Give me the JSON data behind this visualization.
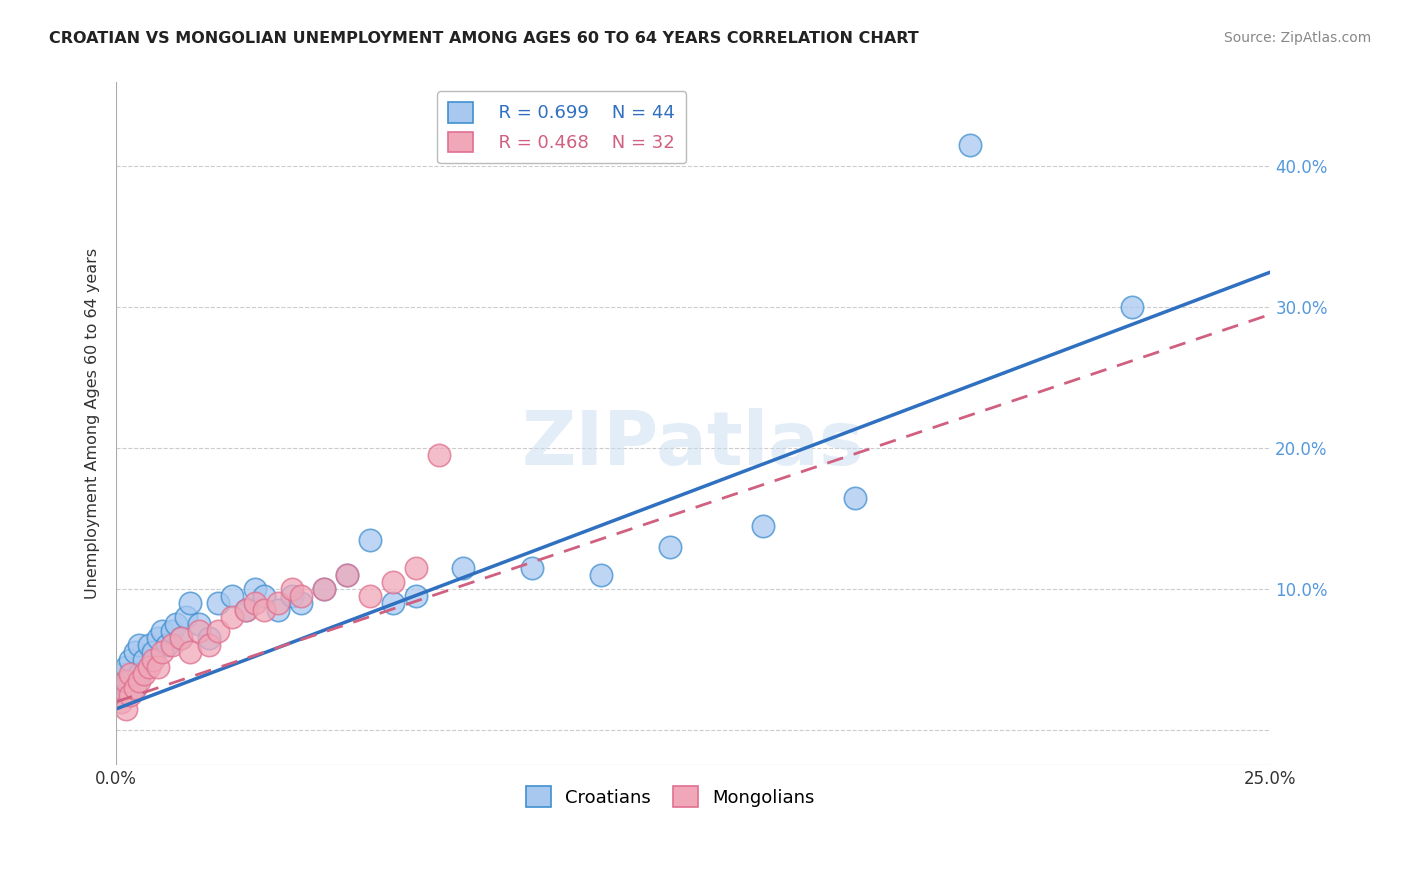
{
  "title": "CROATIAN VS MONGOLIAN UNEMPLOYMENT AMONG AGES 60 TO 64 YEARS CORRELATION CHART",
  "source": "Source: ZipAtlas.com",
  "ylabel": "Unemployment Among Ages 60 to 64 years",
  "xlim": [
    0.0,
    0.25
  ],
  "ylim": [
    -0.025,
    0.46
  ],
  "xtick_positions": [
    0.0,
    0.05,
    0.1,
    0.15,
    0.2,
    0.25
  ],
  "xtick_labels": [
    "0.0%",
    "",
    "",
    "",
    "",
    "25.0%"
  ],
  "ytick_positions": [
    0.0,
    0.1,
    0.2,
    0.3,
    0.4
  ],
  "ytick_labels_right": [
    "",
    "10.0%",
    "20.0%",
    "30.0%",
    "40.0%"
  ],
  "legend_r_croatian": "R = 0.699",
  "legend_n_croatian": "N = 44",
  "legend_r_mongolian": "R = 0.468",
  "legend_n_mongolian": "N = 32",
  "croatian_fill": "#A8C8F0",
  "mongolian_fill": "#F0A8B8",
  "croatian_edge": "#4090D0",
  "mongolian_edge": "#E07090",
  "croatian_line_color": "#3070C0",
  "mongolian_line_color": "#D06080",
  "watermark": "ZIPatlas",
  "background_color": "#FFFFFF",
  "grid_color": "#CCCCCC",
  "croatian_x": [
    0.001,
    0.001,
    0.002,
    0.002,
    0.003,
    0.003,
    0.004,
    0.004,
    0.005,
    0.005,
    0.006,
    0.007,
    0.008,
    0.009,
    0.01,
    0.011,
    0.012,
    0.013,
    0.014,
    0.015,
    0.016,
    0.018,
    0.02,
    0.022,
    0.025,
    0.028,
    0.03,
    0.032,
    0.035,
    0.038,
    0.04,
    0.045,
    0.05,
    0.055,
    0.06,
    0.065,
    0.075,
    0.09,
    0.105,
    0.12,
    0.14,
    0.16,
    0.185,
    0.22
  ],
  "croatian_y": [
    0.03,
    0.04,
    0.025,
    0.045,
    0.035,
    0.05,
    0.03,
    0.055,
    0.04,
    0.06,
    0.05,
    0.06,
    0.055,
    0.065,
    0.07,
    0.06,
    0.07,
    0.075,
    0.065,
    0.08,
    0.09,
    0.075,
    0.065,
    0.09,
    0.095,
    0.085,
    0.1,
    0.095,
    0.085,
    0.095,
    0.09,
    0.1,
    0.11,
    0.135,
    0.09,
    0.095,
    0.115,
    0.115,
    0.11,
    0.13,
    0.145,
    0.165,
    0.415,
    0.3
  ],
  "mongolian_x": [
    0.001,
    0.001,
    0.002,
    0.002,
    0.003,
    0.003,
    0.004,
    0.005,
    0.006,
    0.007,
    0.008,
    0.009,
    0.01,
    0.012,
    0.014,
    0.016,
    0.018,
    0.02,
    0.022,
    0.025,
    0.028,
    0.03,
    0.032,
    0.035,
    0.038,
    0.04,
    0.045,
    0.05,
    0.055,
    0.06,
    0.065,
    0.07
  ],
  "mongolian_y": [
    0.02,
    0.03,
    0.015,
    0.035,
    0.025,
    0.04,
    0.03,
    0.035,
    0.04,
    0.045,
    0.05,
    0.045,
    0.055,
    0.06,
    0.065,
    0.055,
    0.07,
    0.06,
    0.07,
    0.08,
    0.085,
    0.09,
    0.085,
    0.09,
    0.1,
    0.095,
    0.1,
    0.11,
    0.095,
    0.105,
    0.115,
    0.195
  ],
  "croatian_reg": [
    0.0,
    0.25,
    0.015,
    0.325
  ],
  "mongolian_reg": [
    0.0,
    0.25,
    0.02,
    0.295
  ]
}
